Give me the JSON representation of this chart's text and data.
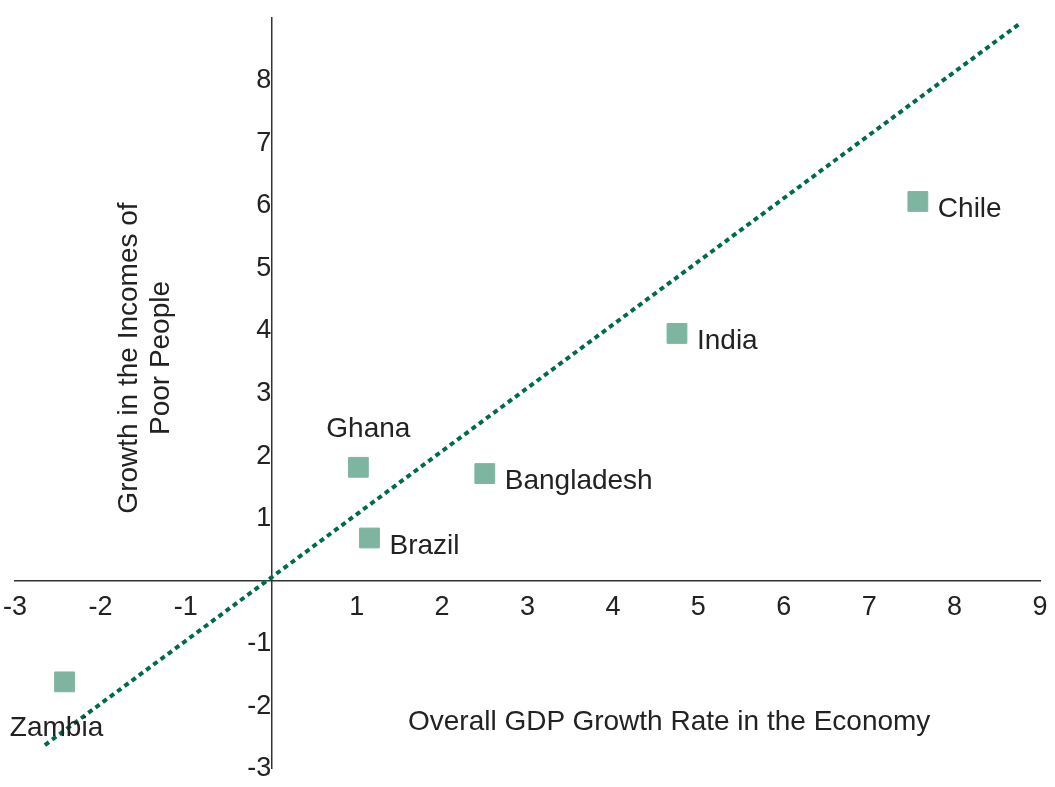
{
  "chart_data": {
    "type": "scatter",
    "xlabel": "Overall GDP Growth Rate in the Economy",
    "ylabel": "Growth in the Incomes of Poor People",
    "xlim": [
      -3,
      9
    ],
    "xticks": [
      -3,
      -2,
      -1,
      1,
      2,
      3,
      4,
      5,
      6,
      7,
      8,
      9
    ],
    "ylim": [
      -3,
      9
    ],
    "yticks": [
      -3,
      -2,
      -1,
      1,
      2,
      3,
      4,
      5,
      6,
      7,
      8
    ],
    "grid": false,
    "legend": false,
    "marker": "square",
    "series": [
      {
        "color": "#7db5a0",
        "x": [
          -2.42,
          1.02,
          1.15,
          2.5,
          4.75,
          7.57
        ],
        "values": [
          -1.61,
          1.82,
          0.69,
          1.72,
          3.96,
          6.07
        ]
      },
      {
        "type": "line",
        "color": "#006a4e",
        "line_style": "dotted",
        "marker": "none",
        "x": [
          -2.65,
          8.75
        ],
        "values": [
          -2.62,
          8.9
        ]
      }
    ],
    "annotations": [
      {
        "text": "Zambia",
        "x": -2.42,
        "y": -1.61
      },
      {
        "text": "Ghana",
        "x": 1.02,
        "y": 1.82
      },
      {
        "text": "Brazil",
        "x": 1.15,
        "y": 0.69
      },
      {
        "text": "Bangladesh",
        "x": 2.5,
        "y": 1.72
      },
      {
        "text": "India",
        "x": 4.75,
        "y": 3.96
      },
      {
        "text": "Chile",
        "x": 7.57,
        "y": 6.07
      }
    ]
  }
}
